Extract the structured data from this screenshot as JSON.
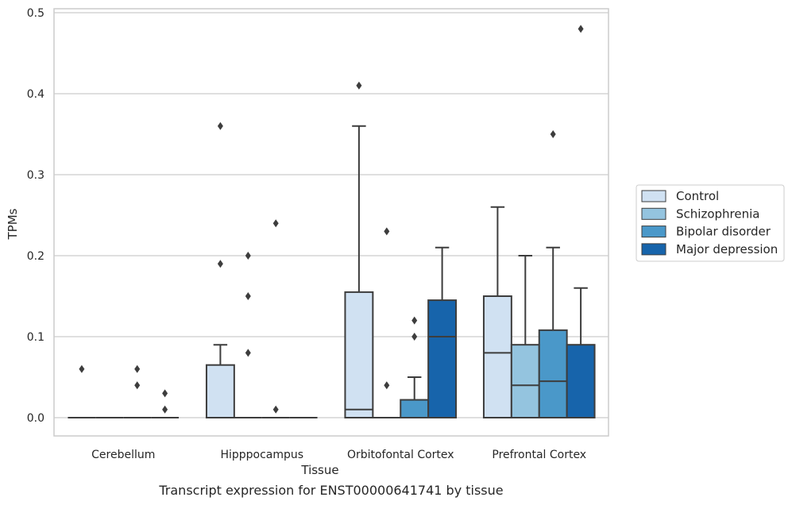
{
  "caption": "Transcript expression for ENST00000641741 by tissue",
  "chart_data": {
    "type": "box",
    "xlabel": "Tissue",
    "ylabel": "TPMs",
    "ylim": [
      -0.023,
      0.505
    ],
    "yticks": [
      "0.0",
      "0.1",
      "0.2",
      "0.3",
      "0.4",
      "0.5"
    ],
    "ytick_values": [
      0.0,
      0.1,
      0.2,
      0.3,
      0.4,
      0.5
    ],
    "grid": true,
    "legend_position": "right",
    "categories": [
      "Cerebellum",
      "Hipppocampus",
      "Orbitofontal Cortex",
      "Prefrontal Cortex"
    ],
    "series": [
      {
        "name": "Control",
        "color": "#d0e1f2",
        "boxes": [
          {
            "q1": 0,
            "median": 0,
            "q3": 0,
            "whisker_low": 0,
            "whisker_high": 0,
            "outliers": [
              0.06
            ]
          },
          {
            "q1": 0,
            "median": 0,
            "q3": 0.065,
            "whisker_low": 0,
            "whisker_high": 0.09,
            "outliers": [
              0.19,
              0.36
            ]
          },
          {
            "q1": 0,
            "median": 0.01,
            "q3": 0.155,
            "whisker_low": 0,
            "whisker_high": 0.36,
            "outliers": [
              0.41
            ]
          },
          {
            "q1": 0,
            "median": 0.08,
            "q3": 0.15,
            "whisker_low": 0,
            "whisker_high": 0.26,
            "outliers": []
          }
        ]
      },
      {
        "name": "Schizophrenia",
        "color": "#94c4df",
        "boxes": [
          {
            "q1": 0,
            "median": 0,
            "q3": 0,
            "whisker_low": 0,
            "whisker_high": 0,
            "outliers": []
          },
          {
            "q1": 0,
            "median": 0,
            "q3": 0,
            "whisker_low": 0,
            "whisker_high": 0,
            "outliers": [
              0.08,
              0.15,
              0.2
            ]
          },
          {
            "q1": 0,
            "median": 0,
            "q3": 0,
            "whisker_low": 0,
            "whisker_high": 0,
            "outliers": [
              0.04,
              0.23
            ]
          },
          {
            "q1": 0,
            "median": 0.04,
            "q3": 0.09,
            "whisker_low": 0,
            "whisker_high": 0.2,
            "outliers": []
          }
        ]
      },
      {
        "name": "Bipolar disorder",
        "color": "#4a98c9",
        "boxes": [
          {
            "q1": 0,
            "median": 0,
            "q3": 0,
            "whisker_low": 0,
            "whisker_high": 0,
            "outliers": [
              0.04,
              0.06
            ]
          },
          {
            "q1": 0,
            "median": 0,
            "q3": 0,
            "whisker_low": 0,
            "whisker_high": 0,
            "outliers": [
              0.01,
              0.24
            ]
          },
          {
            "q1": 0,
            "median": 0,
            "q3": 0.022,
            "whisker_low": 0,
            "whisker_high": 0.05,
            "outliers": [
              0.1,
              0.12
            ]
          },
          {
            "q1": 0,
            "median": 0.045,
            "q3": 0.108,
            "whisker_low": 0,
            "whisker_high": 0.21,
            "outliers": [
              0.35
            ]
          }
        ]
      },
      {
        "name": "Major depression",
        "color": "#1764ab",
        "boxes": [
          {
            "q1": 0,
            "median": 0,
            "q3": 0,
            "whisker_low": 0,
            "whisker_high": 0,
            "outliers": [
              0.01,
              0.03
            ]
          },
          {
            "q1": 0,
            "median": 0,
            "q3": 0,
            "whisker_low": 0,
            "whisker_high": 0,
            "outliers": []
          },
          {
            "q1": 0,
            "median": 0.1,
            "q3": 0.145,
            "whisker_low": 0,
            "whisker_high": 0.21,
            "outliers": []
          },
          {
            "q1": 0,
            "median": 0,
            "q3": 0.09,
            "whisker_low": 0,
            "whisker_high": 0.16,
            "outliers": [
              0.48
            ]
          }
        ]
      }
    ]
  },
  "colors": {
    "grid": "#cccccc",
    "frame": "#cccccc",
    "box_edge": "#3d3d3d"
  }
}
